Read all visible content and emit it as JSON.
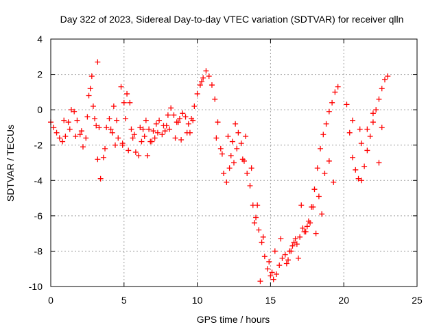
{
  "chart_data": {
    "type": "scatter",
    "title": "Day 322 of 2023, Sidereal Day-to-day VTEC variation (SDTVAR) for receiver qlln",
    "xlabel": "GPS time / hours",
    "ylabel": "SDTVAR / TECUs",
    "xlim": [
      0,
      25
    ],
    "ylim": [
      -10,
      4
    ],
    "xticks": [
      0,
      5,
      10,
      15,
      20,
      25
    ],
    "xtick_labels": [
      "0",
      "5",
      "10",
      "15",
      "20",
      "25"
    ],
    "yticks": [
      -10,
      -8,
      -6,
      -4,
      -2,
      0,
      2,
      4
    ],
    "ytick_labels": [
      "-10",
      "-8",
      "-6",
      "-4",
      "-2",
      "0",
      "2",
      "4"
    ],
    "grid": true,
    "marker": "+",
    "series": [
      {
        "name": "SDTVAR",
        "color": "#ff0000",
        "x": [
          0.0,
          0.2,
          0.4,
          0.6,
          0.8,
          1.0,
          1.2,
          1.4,
          1.6,
          1.8,
          2.0,
          2.2,
          2.4,
          2.6,
          2.8,
          3.0,
          3.2,
          3.4,
          3.6,
          3.8,
          4.0,
          4.2,
          4.4,
          4.6,
          4.8,
          5.0,
          5.2,
          5.4,
          5.6,
          5.8,
          6.0,
          6.2,
          6.4,
          6.6,
          6.8,
          7.0,
          7.2,
          7.4,
          7.6,
          7.8,
          8.0,
          8.2,
          8.4,
          8.6,
          8.8,
          9.0,
          9.2,
          9.4,
          9.6,
          9.8,
          10.0,
          10.2,
          10.4,
          10.6,
          10.8,
          11.0,
          11.2,
          11.4,
          11.6,
          11.8,
          12.0,
          12.2,
          12.4,
          12.6,
          12.8,
          13.0,
          13.2,
          13.4,
          13.6,
          13.8,
          14.0,
          14.2,
          14.4,
          14.6,
          14.8,
          15.0,
          15.2,
          15.4,
          15.6,
          15.8,
          16.0,
          16.2,
          16.4,
          16.6,
          16.8,
          17.0,
          17.2,
          17.4,
          17.6,
          17.8,
          18.0,
          18.2,
          18.4,
          18.6,
          18.8,
          19.0,
          19.2,
          19.4,
          19.6,
          20.2,
          20.4,
          20.6,
          20.8,
          21.0,
          21.2,
          21.4,
          21.6,
          21.8,
          22.0,
          22.2,
          22.4,
          22.6,
          22.8,
          23.0,
          0.9,
          1.3,
          1.7,
          2.1,
          2.5,
          2.9,
          3.3,
          3.7,
          4.1,
          4.5,
          4.9,
          5.3,
          5.7,
          6.1,
          6.5,
          6.9,
          7.3,
          7.7,
          8.1,
          8.5,
          8.9,
          9.3,
          9.7,
          2.7,
          3.2,
          4.3,
          5.1,
          6.3,
          7.1,
          7.9,
          8.7,
          9.5,
          10.3,
          11.3,
          12.3,
          12.7,
          13.1,
          13.7,
          14.1,
          14.5,
          14.9,
          15.3,
          15.7,
          16.1,
          16.5,
          16.9,
          17.3,
          17.7,
          18.1,
          18.5,
          19.0,
          20.6,
          21.2,
          21.6,
          22.0,
          22.6,
          3.1,
          4.9,
          5.5,
          6.7,
          11.7,
          12.1,
          12.5,
          13.3,
          13.9,
          14.3,
          15.1,
          16.3,
          16.7,
          17.1,
          17.5,
          17.9,
          18.3,
          18.7,
          19.3,
          21.1,
          22.4
        ],
        "y": [
          -0.7,
          -1.0,
          -1.3,
          -1.6,
          -1.8,
          -1.5,
          -0.7,
          0.0,
          -0.1,
          -0.6,
          -1.4,
          -2.1,
          -1.6,
          0.8,
          1.9,
          -0.5,
          -2.8,
          -3.9,
          -2.7,
          -1.0,
          -0.5,
          -1.3,
          -2.0,
          -1.6,
          1.3,
          0.4,
          0.9,
          0.4,
          -1.6,
          -2.4,
          -2.6,
          -1.8,
          -1.5,
          -2.6,
          -1.8,
          -1.2,
          -0.8,
          -0.6,
          -1.4,
          -1.2,
          -0.3,
          0.1,
          -0.3,
          -0.7,
          -0.5,
          -0.2,
          -0.4,
          -0.8,
          -0.5,
          0.2,
          0.9,
          1.4,
          1.8,
          2.2,
          1.9,
          1.4,
          0.6,
          -0.7,
          -2.2,
          -3.6,
          -4.1,
          -3.3,
          -1.8,
          -0.8,
          -1.3,
          -1.9,
          -2.9,
          -3.6,
          -4.3,
          -5.4,
          -6.1,
          -6.8,
          -7.5,
          -8.3,
          -9.0,
          -9.4,
          -9.6,
          -9.3,
          -8.8,
          -8.4,
          -8.2,
          -8.5,
          -8.0,
          -7.5,
          -7.6,
          -7.2,
          -6.7,
          -6.9,
          -6.3,
          -5.5,
          -4.5,
          -3.3,
          -2.2,
          -1.4,
          -0.8,
          -0.1,
          0.4,
          1.0,
          1.3,
          0.3,
          -1.3,
          -2.7,
          -3.4,
          -3.9,
          -4.0,
          -3.2,
          -2.3,
          -1.5,
          -0.7,
          0.0,
          0.6,
          1.2,
          1.7,
          1.9,
          -0.6,
          -1.1,
          -1.5,
          -1.2,
          -0.4,
          0.2,
          -1.0,
          -2.2,
          -1.1,
          -0.6,
          -1.9,
          -2.3,
          -1.4,
          -1.0,
          -0.6,
          -1.8,
          -1.3,
          -0.9,
          -1.1,
          -1.6,
          -1.7,
          -1.3,
          -0.6,
          1.2,
          2.7,
          0.2,
          -0.5,
          -1.1,
          -1.6,
          -0.9,
          -0.7,
          -1.3,
          1.6,
          -1.6,
          -2.6,
          -2.2,
          -2.8,
          -3.3,
          -5.4,
          -7.2,
          -8.6,
          -8.0,
          -7.3,
          -8.7,
          -7.7,
          -8.4,
          -6.9,
          -6.4,
          -7.0,
          -5.9,
          -2.9,
          -0.6,
          -1.9,
          -1.1,
          -0.2,
          -1.0,
          -0.9,
          -2.0,
          -1.1,
          -1.1,
          -2.5,
          -1.5,
          -3.0,
          -1.5,
          -6.4,
          -9.7,
          -9.2,
          -8.0,
          -7.3,
          -5.4,
          -6.6,
          -5.5,
          -4.9,
          -3.6,
          -4.1,
          -1.1,
          -3.0
        ]
      }
    ]
  }
}
